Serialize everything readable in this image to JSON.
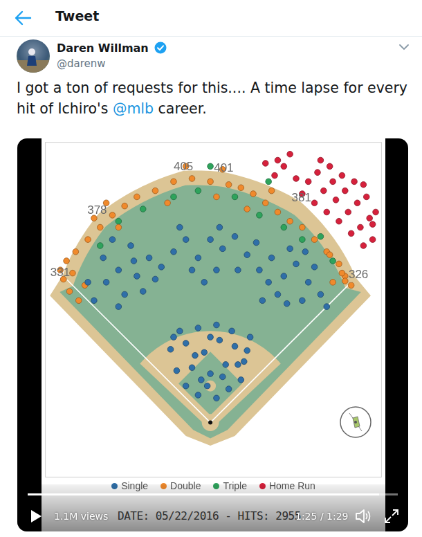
{
  "header": {
    "title": "Tweet"
  },
  "tweet": {
    "author": "Daren Willman",
    "handle": "@darenw",
    "text_parts": [
      "I got a ton of requests for this.... A time lapse for every hit of Ichiro's ",
      "@mlb",
      " career."
    ]
  },
  "video": {
    "views": "1.1M views",
    "overlay": "DATE: 05/22/2016 - HITS: 2955",
    "time": "1:25 / 1:29"
  },
  "chart_data": {
    "type": "scatter",
    "xlim": [
      -270,
      280
    ],
    "ylim": [
      -90,
      460
    ],
    "tick_labels": false,
    "grid": false,
    "legend": "bottom",
    "marker": "circle",
    "fence_distances": [
      331,
      378,
      405,
      401,
      381,
      326
    ],
    "series": [
      {
        "name": "Single",
        "color": "#2f6fa8",
        "values": [
          [
            -40,
            60
          ],
          [
            -20,
            45
          ],
          [
            10,
            40
          ],
          [
            30,
            55
          ],
          [
            50,
            70
          ],
          [
            -55,
            85
          ],
          [
            -30,
            90
          ],
          [
            0,
            80
          ],
          [
            25,
            95
          ],
          [
            55,
            100
          ],
          [
            -65,
            120
          ],
          [
            -40,
            130
          ],
          [
            -10,
            115
          ],
          [
            15,
            135
          ],
          [
            40,
            125
          ],
          [
            65,
            140
          ],
          [
            -50,
            150
          ],
          [
            -20,
            155
          ],
          [
            10,
            160
          ],
          [
            35,
            150
          ],
          [
            -5,
            60
          ],
          [
            20,
            75
          ],
          [
            -25,
            110
          ],
          [
            45,
            95
          ],
          [
            -60,
            140
          ],
          [
            60,
            118
          ],
          [
            0,
            140
          ],
          [
            -15,
            70
          ],
          [
            -190,
            200
          ],
          [
            -170,
            230
          ],
          [
            -150,
            250
          ],
          [
            -175,
            270
          ],
          [
            -140,
            210
          ],
          [
            -120,
            240
          ],
          [
            -100,
            270
          ],
          [
            -130,
            290
          ],
          [
            -160,
            300
          ],
          [
            -110,
            215
          ],
          [
            -90,
            235
          ],
          [
            -150,
            190
          ],
          [
            -200,
            230
          ],
          [
            -125,
            265
          ],
          [
            -80,
            255
          ],
          [
            -60,
            280
          ],
          [
            -40,
            300
          ],
          [
            -20,
            270
          ],
          [
            0,
            300
          ],
          [
            20,
            285
          ],
          [
            40,
            305
          ],
          [
            60,
            275
          ],
          [
            -30,
            250
          ],
          [
            10,
            250
          ],
          [
            45,
            250
          ],
          [
            -50,
            320
          ],
          [
            15,
            320
          ],
          [
            75,
            295
          ],
          [
            -10,
            230
          ],
          [
            80,
            250
          ],
          [
            100,
            270
          ],
          [
            120,
            240
          ],
          [
            140,
            260
          ],
          [
            160,
            230
          ],
          [
            180,
            210
          ],
          [
            150,
            200
          ],
          [
            110,
            210
          ],
          [
            95,
            230
          ],
          [
            130,
            285
          ],
          [
            170,
            255
          ],
          [
            190,
            190
          ],
          [
            85,
            200
          ],
          [
            125,
            195
          ],
          [
            155,
            280
          ]
        ]
      },
      {
        "name": "Double",
        "color": "#f08a2c",
        "values": [
          [
            -240,
            235
          ],
          [
            -230,
            215
          ],
          [
            -225,
            245
          ],
          [
            -215,
            200
          ],
          [
            -245,
            250
          ],
          [
            -205,
            225
          ],
          [
            -235,
            265
          ],
          [
            -220,
            280
          ],
          [
            -200,
            300
          ],
          [
            -180,
            320
          ],
          [
            -160,
            340
          ],
          [
            -140,
            355
          ],
          [
            -190,
            335
          ],
          [
            -170,
            360
          ],
          [
            -120,
            370
          ],
          [
            -150,
            320
          ],
          [
            -90,
            380
          ],
          [
            -60,
            395
          ],
          [
            -30,
            400
          ],
          [
            0,
            395
          ],
          [
            30,
            390
          ],
          [
            -70,
            360
          ],
          [
            10,
            370
          ],
          [
            -40,
            420
          ],
          [
            20,
            415
          ],
          [
            50,
            385
          ],
          [
            70,
            375
          ],
          [
            90,
            360
          ],
          [
            110,
            345
          ],
          [
            130,
            330
          ],
          [
            150,
            320
          ],
          [
            100,
            380
          ],
          [
            60,
            350
          ],
          [
            170,
            300
          ],
          [
            190,
            280
          ],
          [
            210,
            260
          ],
          [
            220,
            240
          ],
          [
            230,
            225
          ],
          [
            200,
            230
          ],
          [
            215,
            245
          ],
          [
            220,
            232
          ],
          [
            195,
            275
          ]
        ]
      },
      {
        "name": "Triple",
        "color": "#2ea35c",
        "values": [
          [
            -150,
            330
          ],
          [
            -110,
            350
          ],
          [
            -60,
            370
          ],
          [
            -20,
            380
          ],
          [
            40,
            370
          ],
          [
            80,
            340
          ],
          [
            120,
            320
          ],
          [
            150,
            300
          ],
          [
            180,
            305
          ],
          [
            -180,
            290
          ],
          [
            200,
            265
          ],
          [
            95,
            395
          ],
          [
            0,
            420
          ]
        ]
      },
      {
        "name": "Home Run",
        "color": "#d6213c",
        "values": [
          [
            150,
            375
          ],
          [
            170,
            360
          ],
          [
            190,
            345
          ],
          [
            210,
            330
          ],
          [
            230,
            310
          ],
          [
            250,
            290
          ],
          [
            160,
            395
          ],
          [
            185,
            380
          ],
          [
            205,
            365
          ],
          [
            225,
            345
          ],
          [
            245,
            320
          ],
          [
            265,
            300
          ],
          [
            175,
            410
          ],
          [
            200,
            395
          ],
          [
            220,
            380
          ],
          [
            240,
            360
          ],
          [
            260,
            335
          ],
          [
            140,
            400
          ],
          [
            195,
            420
          ],
          [
            235,
            395
          ],
          [
            255,
            370
          ],
          [
            270,
            345
          ],
          [
            215,
            405
          ],
          [
            180,
            430
          ],
          [
            120,
            420
          ],
          [
            130,
            440
          ],
          [
            250,
            390
          ],
          [
            265,
            325
          ],
          [
            105,
            405
          ],
          [
            90,
            425
          ],
          [
            110,
            430
          ]
        ]
      }
    ]
  }
}
